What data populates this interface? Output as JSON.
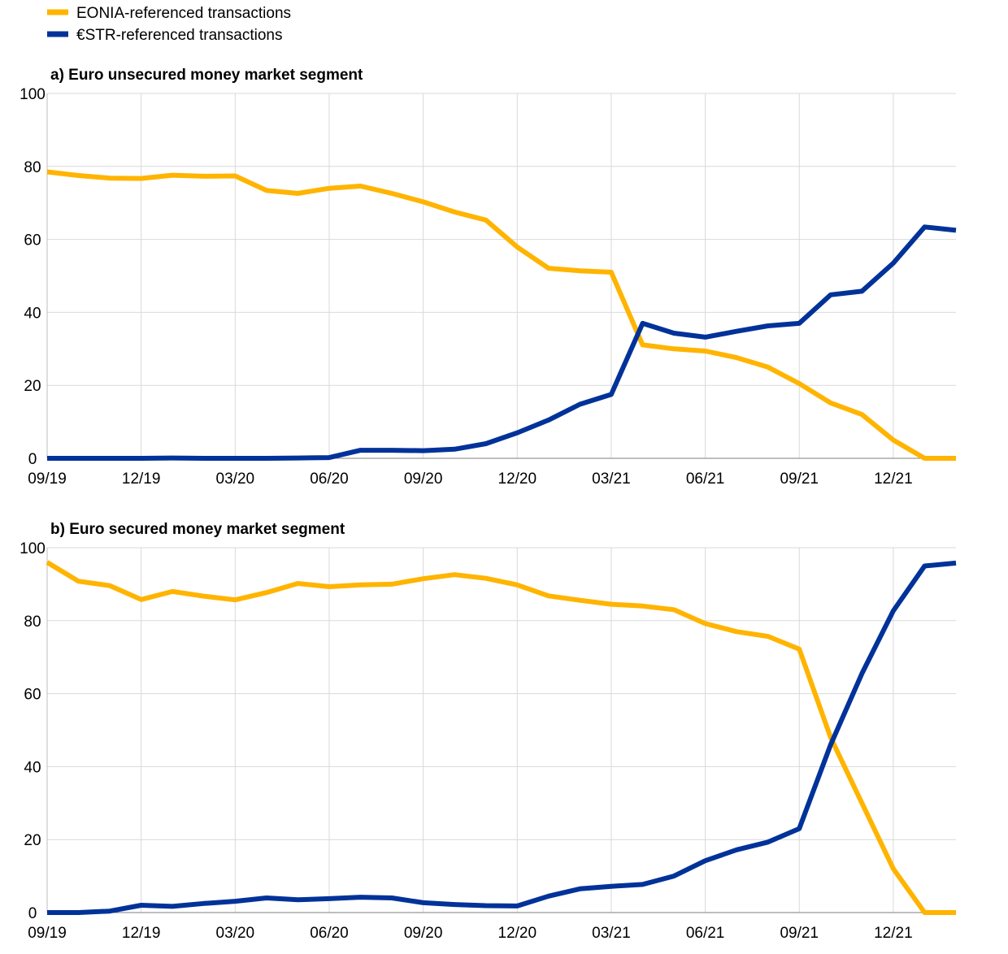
{
  "legend": [
    {
      "label": "EONIA-referenced transactions",
      "color": "#FFB400"
    },
    {
      "label": "€STR-referenced transactions",
      "color": "#003299"
    }
  ],
  "chart_data": [
    {
      "type": "line",
      "title": "a) Euro unsecured money market segment",
      "xlabel": "",
      "ylabel": "",
      "ylim": [
        0,
        100
      ],
      "yticks": [
        0,
        20,
        40,
        60,
        80,
        100
      ],
      "grid": true,
      "legend_placement": "top-left",
      "x": [
        "09/19",
        "10/19",
        "11/19",
        "12/19",
        "01/20",
        "02/20",
        "03/20",
        "04/20",
        "05/20",
        "06/20",
        "07/20",
        "08/20",
        "09/20",
        "10/20",
        "11/20",
        "12/20",
        "01/21",
        "02/21",
        "03/21",
        "04/21",
        "05/21",
        "06/21",
        "07/21",
        "08/21",
        "09/21",
        "10/21",
        "11/21",
        "12/21",
        "01/22",
        "02/22"
      ],
      "xtick_labels": [
        "09/19",
        "12/19",
        "03/20",
        "06/20",
        "09/20",
        "12/20",
        "03/21",
        "06/21",
        "09/21",
        "12/21"
      ],
      "series": [
        {
          "name": "EONIA-referenced transactions",
          "color": "#FFB400",
          "values": [
            78.5,
            77.5,
            76.8,
            76.7,
            77.6,
            77.3,
            77.4,
            73.4,
            72.6,
            74.0,
            74.6,
            72.6,
            70.3,
            67.5,
            65.3,
            57.9,
            52.1,
            51.4,
            51.0,
            31.1,
            30.0,
            29.4,
            27.6,
            25.0,
            20.5,
            15.2,
            12.0,
            5.0,
            0,
            0
          ]
        },
        {
          "name": "€STR-referenced transactions",
          "color": "#003299",
          "values": [
            0,
            0,
            0,
            0,
            0.1,
            0,
            0,
            0,
            0.1,
            0.2,
            2.2,
            2.2,
            2.1,
            2.5,
            4.0,
            7.0,
            10.5,
            14.8,
            17.5,
            37.0,
            34.3,
            33.2,
            34.8,
            36.3,
            37.0,
            44.8,
            45.8,
            53.5,
            63.4,
            62.5
          ]
        }
      ]
    },
    {
      "type": "line",
      "title": "b) Euro secured money market segment",
      "xlabel": "",
      "ylabel": "",
      "ylim": [
        0,
        100
      ],
      "yticks": [
        0,
        20,
        40,
        60,
        80,
        100
      ],
      "grid": true,
      "x": [
        "09/19",
        "10/19",
        "11/19",
        "12/19",
        "01/20",
        "02/20",
        "03/20",
        "04/20",
        "05/20",
        "06/20",
        "07/20",
        "08/20",
        "09/20",
        "10/20",
        "11/20",
        "12/20",
        "01/21",
        "02/21",
        "03/21",
        "04/21",
        "05/21",
        "06/21",
        "07/21",
        "08/21",
        "09/21",
        "10/21",
        "11/21",
        "12/21",
        "01/22",
        "02/22"
      ],
      "xtick_labels": [
        "09/19",
        "12/19",
        "03/20",
        "06/20",
        "09/20",
        "12/20",
        "03/21",
        "06/21",
        "09/21",
        "12/21"
      ],
      "series": [
        {
          "name": "EONIA-referenced transactions",
          "color": "#FFB400",
          "values": [
            96.0,
            90.8,
            89.6,
            85.8,
            88.0,
            86.7,
            85.7,
            87.7,
            90.2,
            89.3,
            89.8,
            90.0,
            91.5,
            92.6,
            91.6,
            89.8,
            86.8,
            85.6,
            84.5,
            84.0,
            83.0,
            79.2,
            77.0,
            75.7,
            72.2,
            48.0,
            30.0,
            12.0,
            0,
            0
          ]
        },
        {
          "name": "€STR-referenced transactions",
          "color": "#003299",
          "values": [
            0,
            0,
            0.4,
            2.0,
            1.7,
            2.5,
            3.1,
            4.0,
            3.5,
            3.8,
            4.2,
            4.0,
            2.7,
            2.2,
            1.9,
            1.8,
            4.5,
            6.5,
            7.2,
            7.7,
            10.0,
            14.2,
            17.2,
            19.3,
            23.0,
            46.0,
            65.5,
            82.7,
            95.0,
            95.8
          ]
        }
      ]
    }
  ]
}
